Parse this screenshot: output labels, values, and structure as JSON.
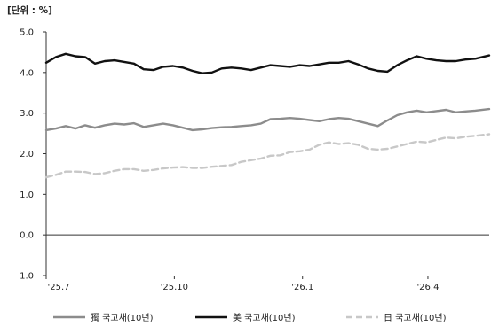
{
  "chart_data": {
    "type": "line",
    "unit_label": "[단위 : %]",
    "title": "",
    "xlabel": "",
    "ylabel": "",
    "ylim": [
      -1.0,
      5.0
    ],
    "yticks": [
      "5.0",
      "4.0",
      "3.0",
      "2.0",
      "1.0",
      "0.0",
      "-1.0"
    ],
    "ytick_values": [
      5.0,
      4.0,
      3.0,
      2.0,
      1.0,
      0.0,
      -1.0
    ],
    "x_start": "2025-07-01",
    "x_end": "2026-05-15",
    "xticks": [
      {
        "label": "'25.7",
        "date": "2025-07-01"
      },
      {
        "label": "'25.10",
        "date": "2025-10-01"
      },
      {
        "label": "'26.1",
        "date": "2026-01-01"
      },
      {
        "label": "'26.4",
        "date": "2026-04-01"
      }
    ],
    "grid": false,
    "legend_position": "bottom",
    "series": [
      {
        "name": "獨 국고채(10년)",
        "color": "#8c8c8c",
        "dash": "solid",
        "points": [
          [
            "2025-07-01",
            2.58
          ],
          [
            "2025-07-08",
            2.62
          ],
          [
            "2025-07-15",
            2.68
          ],
          [
            "2025-07-22",
            2.62
          ],
          [
            "2025-07-29",
            2.7
          ],
          [
            "2025-08-05",
            2.64
          ],
          [
            "2025-08-12",
            2.7
          ],
          [
            "2025-08-19",
            2.74
          ],
          [
            "2025-08-26",
            2.72
          ],
          [
            "2025-09-02",
            2.75
          ],
          [
            "2025-09-09",
            2.66
          ],
          [
            "2025-09-16",
            2.7
          ],
          [
            "2025-09-23",
            2.74
          ],
          [
            "2025-09-30",
            2.7
          ],
          [
            "2025-10-07",
            2.64
          ],
          [
            "2025-10-14",
            2.58
          ],
          [
            "2025-10-21",
            2.6
          ],
          [
            "2025-10-28",
            2.63
          ],
          [
            "2025-11-04",
            2.65
          ],
          [
            "2025-11-11",
            2.66
          ],
          [
            "2025-11-18",
            2.68
          ],
          [
            "2025-11-25",
            2.7
          ],
          [
            "2025-12-02",
            2.74
          ],
          [
            "2025-12-09",
            2.85
          ],
          [
            "2025-12-16",
            2.86
          ],
          [
            "2025-12-23",
            2.88
          ],
          [
            "2025-12-30",
            2.86
          ],
          [
            "2026-01-06",
            2.83
          ],
          [
            "2026-01-13",
            2.8
          ],
          [
            "2026-01-20",
            2.85
          ],
          [
            "2026-01-27",
            2.88
          ],
          [
            "2026-02-03",
            2.86
          ],
          [
            "2026-02-10",
            2.8
          ],
          [
            "2026-02-17",
            2.74
          ],
          [
            "2026-02-24",
            2.68
          ],
          [
            "2026-03-03",
            2.82
          ],
          [
            "2026-03-10",
            2.95
          ],
          [
            "2026-03-17",
            3.02
          ],
          [
            "2026-03-24",
            3.06
          ],
          [
            "2026-03-31",
            3.02
          ],
          [
            "2026-04-07",
            3.05
          ],
          [
            "2026-04-14",
            3.08
          ],
          [
            "2026-04-21",
            3.02
          ],
          [
            "2026-04-28",
            3.04
          ],
          [
            "2026-05-05",
            3.06
          ],
          [
            "2026-05-15",
            3.1
          ]
        ]
      },
      {
        "name": "美 국고채(10년)",
        "color": "#111111",
        "dash": "solid",
        "points": [
          [
            "2025-07-01",
            4.24
          ],
          [
            "2025-07-08",
            4.38
          ],
          [
            "2025-07-15",
            4.46
          ],
          [
            "2025-07-22",
            4.4
          ],
          [
            "2025-07-29",
            4.38
          ],
          [
            "2025-08-05",
            4.22
          ],
          [
            "2025-08-12",
            4.28
          ],
          [
            "2025-08-19",
            4.3
          ],
          [
            "2025-08-26",
            4.26
          ],
          [
            "2025-09-02",
            4.22
          ],
          [
            "2025-09-09",
            4.08
          ],
          [
            "2025-09-16",
            4.06
          ],
          [
            "2025-09-23",
            4.14
          ],
          [
            "2025-09-30",
            4.16
          ],
          [
            "2025-10-07",
            4.12
          ],
          [
            "2025-10-14",
            4.04
          ],
          [
            "2025-10-21",
            3.98
          ],
          [
            "2025-10-28",
            4.0
          ],
          [
            "2025-11-04",
            4.1
          ],
          [
            "2025-11-11",
            4.12
          ],
          [
            "2025-11-18",
            4.1
          ],
          [
            "2025-11-25",
            4.06
          ],
          [
            "2025-12-02",
            4.12
          ],
          [
            "2025-12-09",
            4.18
          ],
          [
            "2025-12-16",
            4.16
          ],
          [
            "2025-12-23",
            4.14
          ],
          [
            "2025-12-30",
            4.18
          ],
          [
            "2026-01-06",
            4.16
          ],
          [
            "2026-01-13",
            4.2
          ],
          [
            "2026-01-20",
            4.24
          ],
          [
            "2026-01-27",
            4.24
          ],
          [
            "2026-02-03",
            4.28
          ],
          [
            "2026-02-10",
            4.2
          ],
          [
            "2026-02-17",
            4.1
          ],
          [
            "2026-02-24",
            4.04
          ],
          [
            "2026-03-03",
            4.02
          ],
          [
            "2026-03-10",
            4.18
          ],
          [
            "2026-03-17",
            4.3
          ],
          [
            "2026-03-24",
            4.4
          ],
          [
            "2026-03-31",
            4.34
          ],
          [
            "2026-04-07",
            4.3
          ],
          [
            "2026-04-14",
            4.28
          ],
          [
            "2026-04-21",
            4.28
          ],
          [
            "2026-04-28",
            4.32
          ],
          [
            "2026-05-05",
            4.34
          ],
          [
            "2026-05-15",
            4.42
          ]
        ]
      },
      {
        "name": "日 국고채(10년)",
        "color": "#c8c8c8",
        "dash": "dashed",
        "points": [
          [
            "2025-07-01",
            1.42
          ],
          [
            "2025-07-08",
            1.48
          ],
          [
            "2025-07-15",
            1.56
          ],
          [
            "2025-07-22",
            1.56
          ],
          [
            "2025-07-29",
            1.55
          ],
          [
            "2025-08-05",
            1.5
          ],
          [
            "2025-08-12",
            1.52
          ],
          [
            "2025-08-19",
            1.58
          ],
          [
            "2025-08-26",
            1.62
          ],
          [
            "2025-09-02",
            1.62
          ],
          [
            "2025-09-09",
            1.58
          ],
          [
            "2025-09-16",
            1.6
          ],
          [
            "2025-09-23",
            1.64
          ],
          [
            "2025-09-30",
            1.66
          ],
          [
            "2025-10-07",
            1.67
          ],
          [
            "2025-10-14",
            1.65
          ],
          [
            "2025-10-21",
            1.65
          ],
          [
            "2025-10-28",
            1.68
          ],
          [
            "2025-11-04",
            1.7
          ],
          [
            "2025-11-11",
            1.72
          ],
          [
            "2025-11-18",
            1.8
          ],
          [
            "2025-11-25",
            1.84
          ],
          [
            "2025-12-02",
            1.88
          ],
          [
            "2025-12-09",
            1.95
          ],
          [
            "2025-12-16",
            1.96
          ],
          [
            "2025-12-23",
            2.04
          ],
          [
            "2025-12-30",
            2.06
          ],
          [
            "2026-01-06",
            2.1
          ],
          [
            "2026-01-13",
            2.22
          ],
          [
            "2026-01-20",
            2.28
          ],
          [
            "2026-01-27",
            2.24
          ],
          [
            "2026-02-03",
            2.26
          ],
          [
            "2026-02-10",
            2.22
          ],
          [
            "2026-02-17",
            2.12
          ],
          [
            "2026-02-24",
            2.1
          ],
          [
            "2026-03-03",
            2.12
          ],
          [
            "2026-03-10",
            2.18
          ],
          [
            "2026-03-17",
            2.24
          ],
          [
            "2026-03-24",
            2.3
          ],
          [
            "2026-03-31",
            2.28
          ],
          [
            "2026-04-07",
            2.34
          ],
          [
            "2026-04-14",
            2.4
          ],
          [
            "2026-04-21",
            2.38
          ],
          [
            "2026-04-28",
            2.42
          ],
          [
            "2026-05-05",
            2.44
          ],
          [
            "2026-05-15",
            2.48
          ]
        ]
      }
    ]
  }
}
